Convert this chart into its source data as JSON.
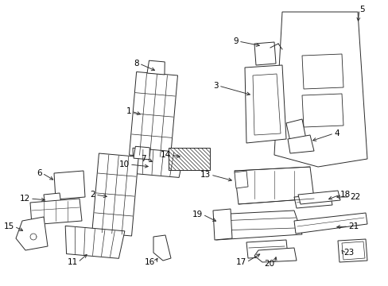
{
  "background_color": "#ffffff",
  "line_color": "#2a2a2a",
  "fig_width": 4.89,
  "fig_height": 3.6,
  "dpi": 100,
  "label_fontsize": 7.5,
  "lw": 0.7
}
